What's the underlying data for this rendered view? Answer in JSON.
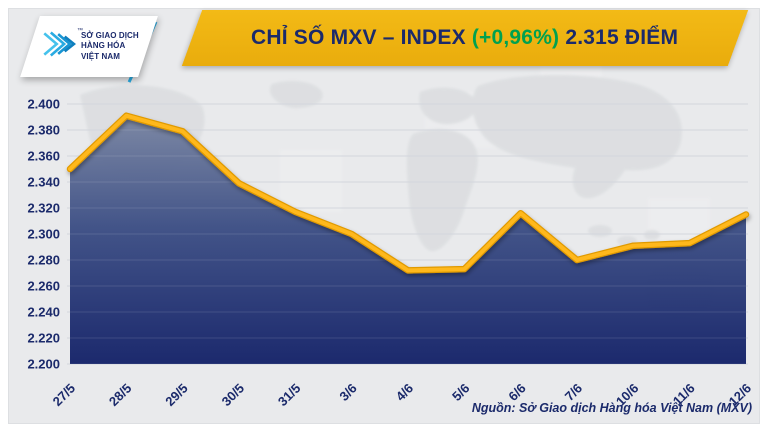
{
  "header": {
    "logo": {
      "lines": [
        "SỞ GIAO DỊCH",
        "HÀNG HÓA",
        "VIỆT NAM"
      ],
      "trademark": "™"
    },
    "title": {
      "main": "CHỈ SỐ MXV – INDEX",
      "change": "(+0,96%)",
      "value": "2.315 ĐIỂM"
    }
  },
  "footer": {
    "source": "Nguồn: Sở Giao dịch Hàng hóa Việt Nam (MXV)"
  },
  "colors": {
    "banner_yellow": "#EFB412",
    "navy": "#1B2A6B",
    "green": "#00A14F",
    "line_yellow": "#FFB81C",
    "line_shade": "#E09A00",
    "fill_top": "#7A86A3",
    "fill_mid": "#3D4F85",
    "fill_bottom": "#152369",
    "panel_bg": "#E9EAEC",
    "gridline": "#CDD1D9",
    "logo_cyan": "#29ABE2"
  },
  "chart_data": {
    "type": "area",
    "title": "CHỈ SỐ MXV – INDEX (+0,96%) 2.315 ĐIỂM",
    "x": [
      "27/5",
      "28/5",
      "29/5",
      "30/5",
      "31/5",
      "3/6",
      "4/6",
      "5/6",
      "6/6",
      "7/6",
      "10/6",
      "11/6",
      "12/6"
    ],
    "values": [
      2.35,
      2.391,
      2.379,
      2.339,
      2.317,
      2.3,
      2.272,
      2.273,
      2.316,
      2.28,
      2.291,
      2.293,
      2.315
    ],
    "ylim": [
      2.2,
      2.4
    ],
    "ytick_step": 0.02,
    "ytick_labels": [
      "2.200",
      "2.220",
      "2.240",
      "2.260",
      "2.280",
      "2.300",
      "2.320",
      "2.340",
      "2.360",
      "2.380",
      "2.400"
    ],
    "xlabel": "",
    "ylabel": "",
    "grid": true,
    "legend": null
  }
}
